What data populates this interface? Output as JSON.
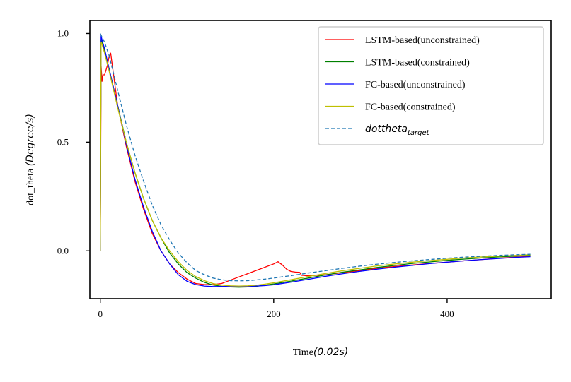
{
  "chart_data": {
    "type": "line",
    "xlabel": {
      "prefix": "Time",
      "math": "(0.02s)"
    },
    "ylabel": {
      "prefix": "dot_theta ",
      "math": "(Degree/s)"
    },
    "xlim": [
      -12,
      520
    ],
    "ylim": [
      -0.22,
      1.06
    ],
    "xticks": [
      0,
      200,
      400
    ],
    "xtick_labels": [
      "0",
      "200",
      "400"
    ],
    "yticks": [
      0.0,
      0.5,
      1.0
    ],
    "ytick_labels": [
      "0.0",
      "0.5",
      "1.0"
    ],
    "grid": false,
    "legend_position": "top-right",
    "series": [
      {
        "name": "LSTM-based(unconstrained)",
        "color": "#ff0000",
        "dash": "solid",
        "x": [
          0,
          1,
          2,
          3,
          5,
          8,
          10,
          12,
          15,
          20,
          30,
          40,
          50,
          60,
          70,
          80,
          90,
          100,
          110,
          120,
          130,
          140,
          150,
          160,
          170,
          180,
          190,
          200,
          205,
          210,
          215,
          220,
          225,
          230,
          232,
          240,
          260,
          280,
          300,
          320,
          340,
          360,
          380,
          400,
          420,
          440,
          460,
          480,
          496
        ],
        "y": [
          0.0,
          0.85,
          0.78,
          0.81,
          0.81,
          0.85,
          0.89,
          0.91,
          0.82,
          0.67,
          0.48,
          0.32,
          0.19,
          0.08,
          0.0,
          -0.06,
          -0.1,
          -0.13,
          -0.15,
          -0.155,
          -0.155,
          -0.15,
          -0.135,
          -0.12,
          -0.105,
          -0.09,
          -0.075,
          -0.06,
          -0.05,
          -0.065,
          -0.085,
          -0.095,
          -0.098,
          -0.099,
          -0.112,
          -0.115,
          -0.11,
          -0.1,
          -0.09,
          -0.08,
          -0.072,
          -0.065,
          -0.058,
          -0.052,
          -0.046,
          -0.04,
          -0.034,
          -0.029,
          -0.025
        ]
      },
      {
        "name": "LSTM-based(constrained)",
        "color": "#008000",
        "dash": "solid",
        "x": [
          0,
          0.5,
          1,
          2,
          5,
          10,
          20,
          30,
          40,
          50,
          60,
          70,
          80,
          90,
          100,
          110,
          120,
          130,
          140,
          150,
          160,
          170,
          180,
          190,
          200,
          220,
          240,
          260,
          280,
          300,
          320,
          340,
          360,
          380,
          400,
          420,
          440,
          460,
          480,
          496
        ],
        "y": [
          0.0,
          0.55,
          0.97,
          0.96,
          0.92,
          0.84,
          0.67,
          0.5,
          0.36,
          0.24,
          0.14,
          0.06,
          -0.01,
          -0.06,
          -0.1,
          -0.125,
          -0.145,
          -0.157,
          -0.163,
          -0.166,
          -0.167,
          -0.166,
          -0.163,
          -0.158,
          -0.152,
          -0.139,
          -0.125,
          -0.111,
          -0.098,
          -0.087,
          -0.076,
          -0.067,
          -0.058,
          -0.051,
          -0.044,
          -0.038,
          -0.033,
          -0.028,
          -0.024,
          -0.021
        ]
      },
      {
        "name": "FC-based(unconstrained)",
        "color": "#0000ff",
        "dash": "solid",
        "x": [
          0,
          0.5,
          1,
          2,
          5,
          10,
          20,
          30,
          40,
          50,
          60,
          70,
          80,
          90,
          100,
          110,
          120,
          130,
          140,
          150,
          160,
          170,
          180,
          190,
          200,
          220,
          240,
          260,
          280,
          300,
          320,
          340,
          360,
          380,
          400,
          420,
          440,
          460,
          480,
          496
        ],
        "y": [
          0.0,
          0.6,
          0.99,
          0.97,
          0.93,
          0.84,
          0.67,
          0.49,
          0.33,
          0.2,
          0.09,
          0.0,
          -0.06,
          -0.11,
          -0.14,
          -0.155,
          -0.162,
          -0.164,
          -0.164,
          -0.163,
          -0.163,
          -0.163,
          -0.162,
          -0.16,
          -0.156,
          -0.144,
          -0.131,
          -0.117,
          -0.105,
          -0.094,
          -0.084,
          -0.075,
          -0.067,
          -0.059,
          -0.052,
          -0.046,
          -0.04,
          -0.035,
          -0.03,
          -0.027
        ]
      },
      {
        "name": "FC-based(constrained)",
        "color": "#bfbf00",
        "dash": "solid",
        "x": [
          0,
          0.5,
          1,
          2,
          5,
          10,
          20,
          30,
          40,
          50,
          60,
          70,
          80,
          90,
          100,
          110,
          120,
          130,
          140,
          150,
          160,
          170,
          180,
          190,
          200,
          220,
          240,
          260,
          280,
          300,
          320,
          340,
          360,
          380,
          400,
          420,
          440,
          460,
          480,
          496
        ],
        "y": [
          0.0,
          0.5,
          0.96,
          0.95,
          0.91,
          0.83,
          0.66,
          0.5,
          0.36,
          0.24,
          0.14,
          0.06,
          0.0,
          -0.05,
          -0.09,
          -0.118,
          -0.137,
          -0.15,
          -0.158,
          -0.161,
          -0.162,
          -0.161,
          -0.158,
          -0.153,
          -0.147,
          -0.133,
          -0.118,
          -0.104,
          -0.091,
          -0.08,
          -0.069,
          -0.06,
          -0.052,
          -0.045,
          -0.039,
          -0.033,
          -0.028,
          -0.024,
          -0.021,
          -0.018
        ]
      },
      {
        "name": "dottheta",
        "name_sub": "target",
        "color": "#1f77b4",
        "dash": "dashed",
        "x": [
          0,
          5,
          10,
          20,
          30,
          40,
          50,
          60,
          70,
          80,
          90,
          100,
          110,
          120,
          130,
          140,
          150,
          160,
          170,
          180,
          190,
          200,
          220,
          240,
          260,
          280,
          300,
          320,
          340,
          360,
          380,
          400,
          420,
          440,
          460,
          480,
          496
        ],
        "y": [
          1.0,
          0.96,
          0.9,
          0.74,
          0.58,
          0.44,
          0.32,
          0.21,
          0.12,
          0.05,
          -0.01,
          -0.055,
          -0.09,
          -0.11,
          -0.125,
          -0.133,
          -0.137,
          -0.138,
          -0.137,
          -0.134,
          -0.13,
          -0.125,
          -0.114,
          -0.102,
          -0.091,
          -0.08,
          -0.07,
          -0.061,
          -0.053,
          -0.046,
          -0.04,
          -0.034,
          -0.029,
          -0.025,
          -0.021,
          -0.018,
          -0.016
        ]
      }
    ]
  }
}
